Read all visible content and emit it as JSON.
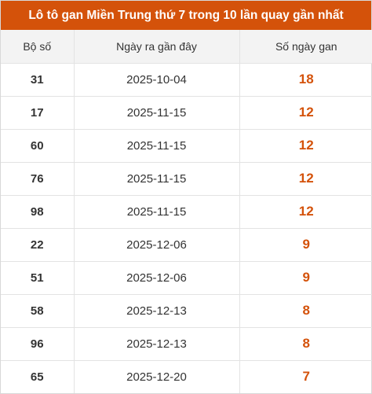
{
  "title": "Lô tô gan Miền Trung thứ 7 trong 10 lần quay gần nhất",
  "accent_color": "#d4520a",
  "columns": [
    "Bộ số",
    "Ngày ra gần đây",
    "Số ngày gan"
  ],
  "rows": [
    {
      "number": "31",
      "date": "2025-10-04",
      "days": "18"
    },
    {
      "number": "17",
      "date": "2025-11-15",
      "days": "12"
    },
    {
      "number": "60",
      "date": "2025-11-15",
      "days": "12"
    },
    {
      "number": "76",
      "date": "2025-11-15",
      "days": "12"
    },
    {
      "number": "98",
      "date": "2025-11-15",
      "days": "12"
    },
    {
      "number": "22",
      "date": "2025-12-06",
      "days": "9"
    },
    {
      "number": "51",
      "date": "2025-12-06",
      "days": "9"
    },
    {
      "number": "58",
      "date": "2025-12-13",
      "days": "8"
    },
    {
      "number": "96",
      "date": "2025-12-13",
      "days": "8"
    },
    {
      "number": "65",
      "date": "2025-12-20",
      "days": "7"
    }
  ]
}
